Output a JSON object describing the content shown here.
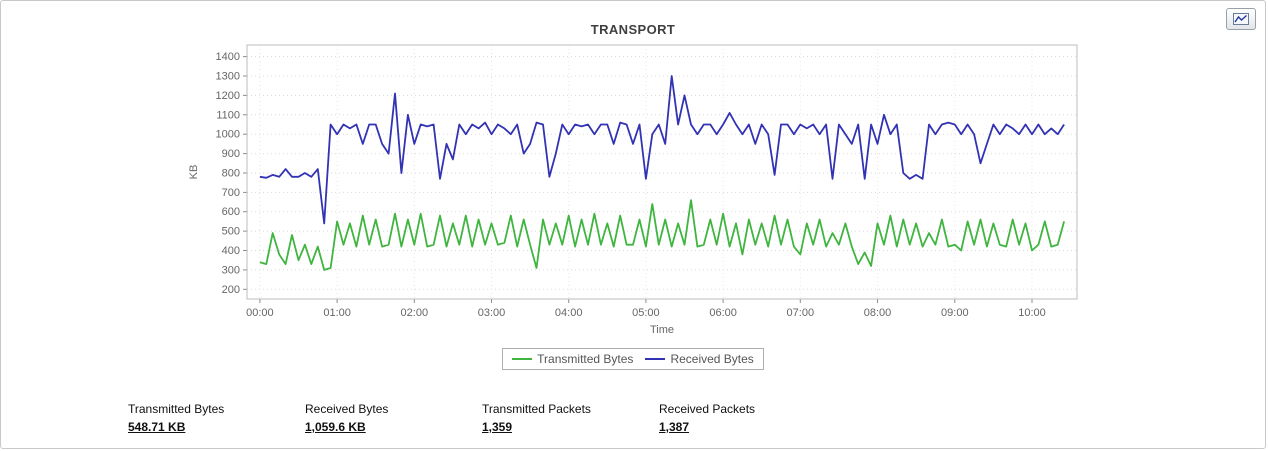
{
  "toolbar": {
    "chart_button": "chart-action"
  },
  "chart_data": {
    "type": "line",
    "title": "TRANSPORT",
    "xlabel": "Time",
    "ylabel": "KB",
    "ylim": [
      150,
      1460
    ],
    "xlim": [
      -10,
      635
    ],
    "grid": true,
    "legend_position": "bottom",
    "yticks": [
      200,
      300,
      400,
      500,
      600,
      700,
      800,
      900,
      1000,
      1100,
      1200,
      1300,
      1400
    ],
    "xticks": [
      {
        "v": 0,
        "label": "00:00"
      },
      {
        "v": 60,
        "label": "01:00"
      },
      {
        "v": 120,
        "label": "02:00"
      },
      {
        "v": 180,
        "label": "03:00"
      },
      {
        "v": 240,
        "label": "04:00"
      },
      {
        "v": 300,
        "label": "05:00"
      },
      {
        "v": 360,
        "label": "06:00"
      },
      {
        "v": 420,
        "label": "07:00"
      },
      {
        "v": 480,
        "label": "08:00"
      },
      {
        "v": 540,
        "label": "09:00"
      },
      {
        "v": 600,
        "label": "10:00"
      }
    ],
    "x": [
      0,
      5,
      10,
      15,
      20,
      25,
      30,
      35,
      40,
      45,
      50,
      55,
      60,
      65,
      70,
      75,
      80,
      85,
      90,
      95,
      100,
      105,
      110,
      115,
      120,
      125,
      130,
      135,
      140,
      145,
      150,
      155,
      160,
      165,
      170,
      175,
      180,
      185,
      190,
      195,
      200,
      205,
      210,
      215,
      220,
      225,
      230,
      235,
      240,
      245,
      250,
      255,
      260,
      265,
      270,
      275,
      280,
      285,
      290,
      295,
      300,
      305,
      310,
      315,
      320,
      325,
      330,
      335,
      340,
      345,
      350,
      355,
      360,
      365,
      370,
      375,
      380,
      385,
      390,
      395,
      400,
      405,
      410,
      415,
      420,
      425,
      430,
      435,
      440,
      445,
      450,
      455,
      460,
      465,
      470,
      475,
      480,
      485,
      490,
      495,
      500,
      505,
      510,
      515,
      520,
      525,
      530,
      535,
      540,
      545,
      550,
      555,
      560,
      565,
      570,
      575,
      580,
      585,
      590,
      595,
      600,
      605,
      610,
      615,
      620,
      625
    ],
    "series": [
      {
        "name": "Transmitted Bytes",
        "color": "#3fb53f",
        "values": [
          340,
          330,
          490,
          380,
          330,
          480,
          350,
          430,
          330,
          420,
          300,
          310,
          550,
          430,
          540,
          420,
          580,
          430,
          560,
          420,
          430,
          590,
          420,
          560,
          430,
          590,
          420,
          430,
          580,
          420,
          540,
          430,
          580,
          420,
          560,
          430,
          540,
          430,
          440,
          580,
          420,
          560,
          430,
          310,
          560,
          430,
          540,
          430,
          580,
          420,
          560,
          430,
          590,
          430,
          540,
          420,
          580,
          430,
          430,
          560,
          420,
          640,
          430,
          560,
          420,
          540,
          430,
          660,
          420,
          430,
          560,
          430,
          590,
          420,
          540,
          380,
          560,
          430,
          540,
          420,
          580,
          430,
          560,
          420,
          380,
          540,
          430,
          560,
          420,
          490,
          430,
          540,
          420,
          330,
          390,
          320,
          540,
          430,
          580,
          420,
          560,
          430,
          540,
          420,
          490,
          430,
          560,
          420,
          430,
          400,
          550,
          430,
          560,
          420,
          540,
          430,
          420,
          560,
          430,
          540,
          400,
          430,
          550,
          420,
          430,
          550
        ]
      },
      {
        "name": "Received Bytes",
        "color": "#3232b4",
        "values": [
          780,
          775,
          790,
          780,
          820,
          780,
          780,
          800,
          780,
          820,
          540,
          1050,
          1000,
          1050,
          1030,
          1050,
          950,
          1050,
          1050,
          950,
          900,
          1210,
          800,
          1100,
          950,
          1050,
          1040,
          1050,
          770,
          950,
          870,
          1050,
          1000,
          1050,
          1030,
          1060,
          1000,
          1050,
          1030,
          1000,
          1050,
          900,
          950,
          1060,
          1050,
          780,
          900,
          1050,
          1000,
          1050,
          1040,
          1050,
          1000,
          1050,
          1050,
          950,
          1060,
          1050,
          950,
          1050,
          770,
          1000,
          1050,
          950,
          1300,
          1050,
          1200,
          1050,
          1000,
          1050,
          1050,
          1000,
          1050,
          1110,
          1050,
          1000,
          1050,
          950,
          1050,
          1000,
          790,
          1050,
          1050,
          1000,
          1050,
          1030,
          1050,
          1000,
          1050,
          770,
          1050,
          1000,
          950,
          1050,
          770,
          1050,
          950,
          1100,
          1000,
          1050,
          800,
          770,
          790,
          770,
          1050,
          1000,
          1050,
          1060,
          1050,
          1000,
          1050,
          1000,
          850,
          950,
          1050,
          1000,
          1050,
          1030,
          1000,
          1050,
          1000,
          1050,
          1000,
          1030,
          1000,
          1050
        ]
      }
    ]
  },
  "stats": [
    {
      "label": "Transmitted Bytes",
      "value": "548.71 KB"
    },
    {
      "label": "Received Bytes",
      "value": "1,059.6 KB"
    },
    {
      "label": "Transmitted Packets",
      "value": "1,359"
    },
    {
      "label": "Received Packets",
      "value": "1,387"
    }
  ]
}
